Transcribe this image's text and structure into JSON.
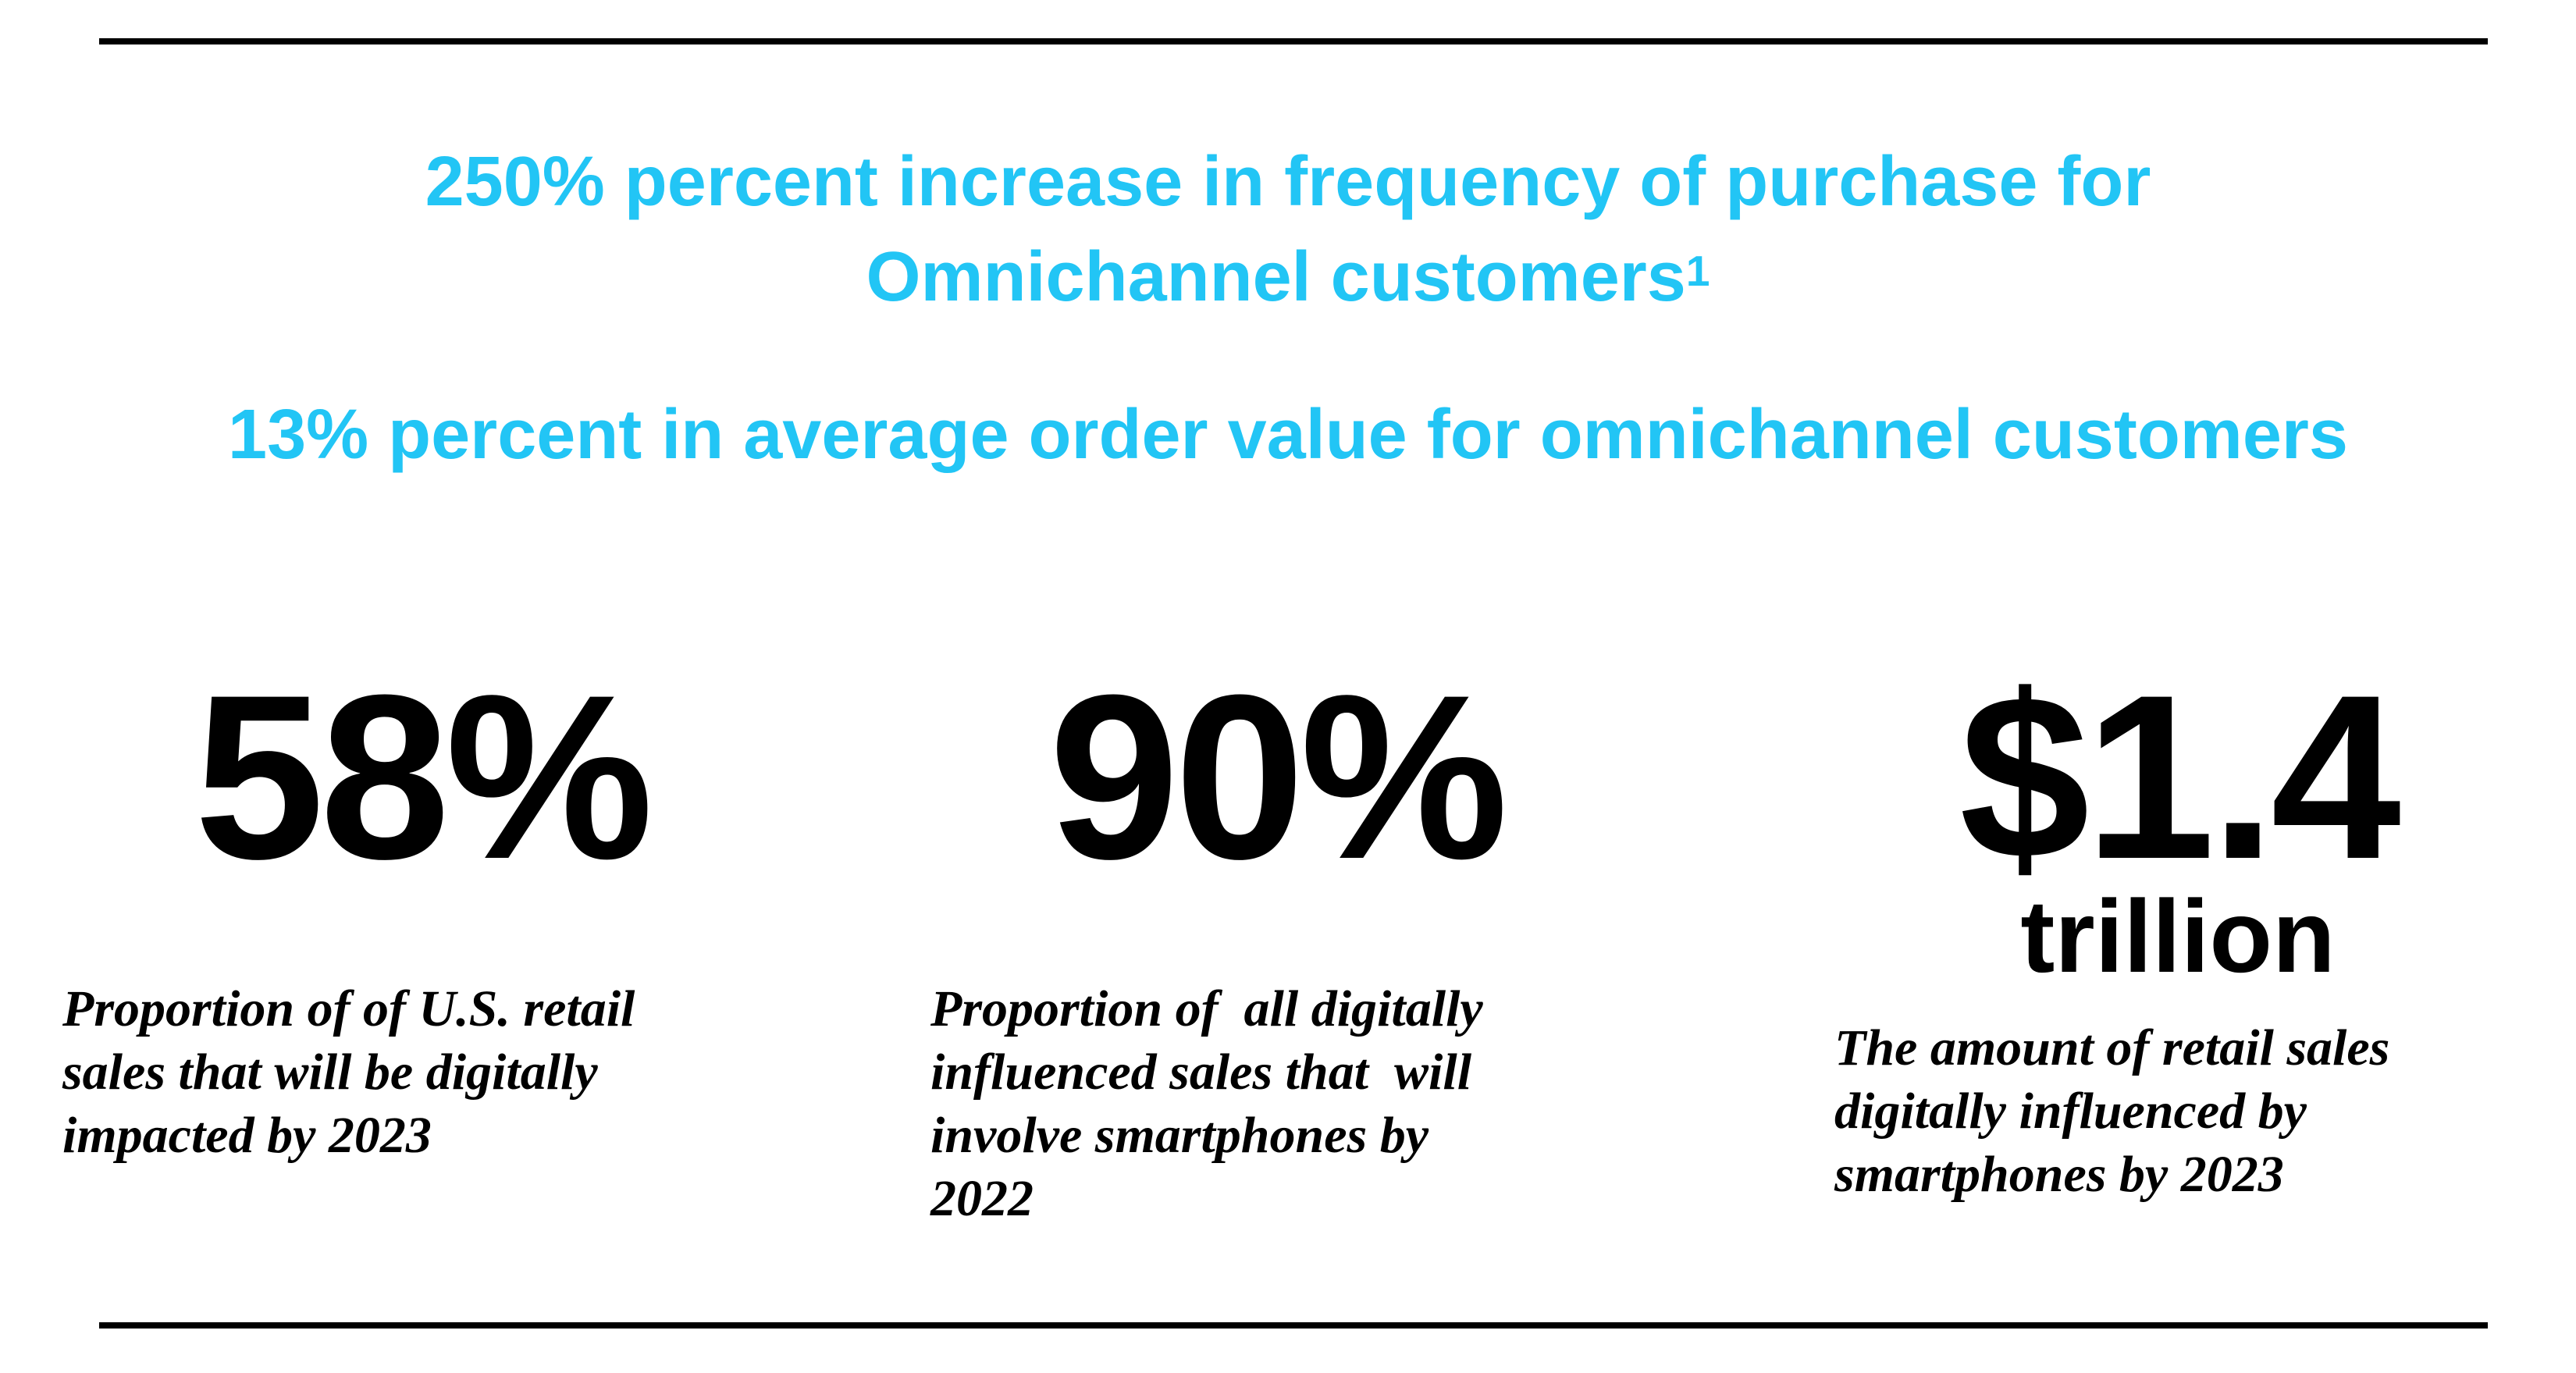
{
  "headlines": {
    "line1": "250% percent increase in frequency of purchase for",
    "line2": "Omnichannel customers",
    "footnote": "1",
    "line3": "13% percent in average order value for omnichannel customers"
  },
  "stats": [
    {
      "value": "58%",
      "description": "Proportion of of U.S. retail\nsales that will be digitally\nimpacted by 2023"
    },
    {
      "value": "90%",
      "description": "Proportion of  all digitally\ninfluenced sales that  will\ninvolve smartphones by\n2022"
    },
    {
      "value": "$1.4",
      "unit": "trillion",
      "description": "The amount of retail sales\ndigitally influenced by\nsmartphones by 2023"
    }
  ],
  "colors": {
    "accent": "#22c5f5",
    "text": "#000000"
  }
}
